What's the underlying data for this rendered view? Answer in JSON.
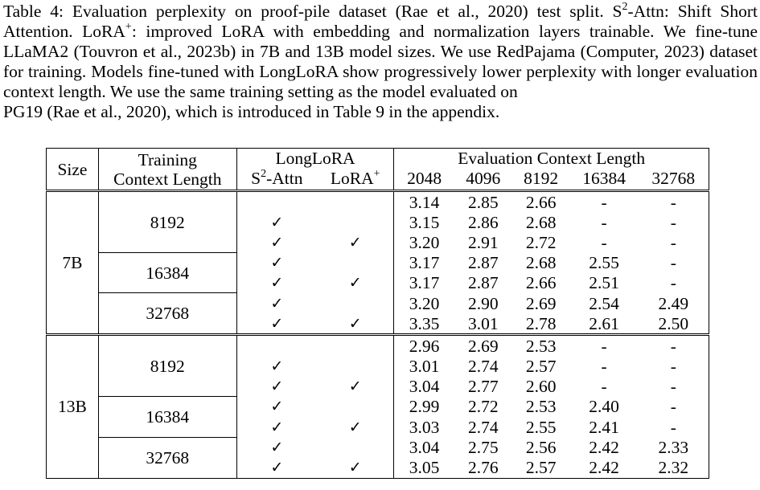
{
  "caption": {
    "line1": "Table 4: Evaluation perplexity on proof-pile dataset (Rae et al., 2020) test split. S",
    "sup1": "2",
    "line1b": "-Attn: Shift Short Attention. LoRA",
    "sup2": "+",
    "line2": ": improved LoRA with embedding and normalization layers trainable. We fine-tune LLaMA2 (Touvron et al., 2023b) in 7B and 13B model sizes. We use RedPajama (Computer, 2023) dataset for training. Models fine-tuned with LongLoRA show progressively lower perplexity with longer evaluation context length. We use the same training setting as the model evaluated on",
    "line3": "PG19 (Rae et al., 2020), which is introduced in Table 9 in the appendix."
  },
  "table": {
    "head": {
      "size": "Size",
      "training_line1": "Training",
      "training_line2": "Context Length",
      "longlora": "LongLoRA",
      "s2attn_pre": "S",
      "s2attn_sup": "2",
      "s2attn_post": "-Attn",
      "lora_pre": "LoRA",
      "lora_sup": "+",
      "eval": "Evaluation Context Length",
      "eval_cols": [
        "2048",
        "4096",
        "8192",
        "16384",
        "32768"
      ]
    },
    "check": "✓",
    "groups": [
      {
        "size": "7B",
        "blocks": [
          {
            "ctx": "8192",
            "rows": [
              {
                "s2": "",
                "lora": "",
                "vals": [
                  "3.14",
                  "2.85",
                  "2.66",
                  "-",
                  "-"
                ]
              },
              {
                "s2": "✓",
                "lora": "",
                "vals": [
                  "3.15",
                  "2.86",
                  "2.68",
                  "-",
                  "-"
                ]
              },
              {
                "s2": "✓",
                "lora": "✓",
                "vals": [
                  "3.20",
                  "2.91",
                  "2.72",
                  "-",
                  "-"
                ]
              }
            ]
          },
          {
            "ctx": "16384",
            "rows": [
              {
                "s2": "✓",
                "lora": "",
                "vals": [
                  "3.17",
                  "2.87",
                  "2.68",
                  "2.55",
                  "-"
                ]
              },
              {
                "s2": "✓",
                "lora": "✓",
                "vals": [
                  "3.17",
                  "2.87",
                  "2.66",
                  "2.51",
                  "-"
                ]
              }
            ]
          },
          {
            "ctx": "32768",
            "rows": [
              {
                "s2": "✓",
                "lora": "",
                "vals": [
                  "3.20",
                  "2.90",
                  "2.69",
                  "2.54",
                  "2.49"
                ]
              },
              {
                "s2": "✓",
                "lora": "✓",
                "vals": [
                  "3.35",
                  "3.01",
                  "2.78",
                  "2.61",
                  "2.50"
                ]
              }
            ]
          }
        ]
      },
      {
        "size": "13B",
        "blocks": [
          {
            "ctx": "8192",
            "rows": [
              {
                "s2": "",
                "lora": "",
                "vals": [
                  "2.96",
                  "2.69",
                  "2.53",
                  "-",
                  "-"
                ]
              },
              {
                "s2": "✓",
                "lora": "",
                "vals": [
                  "3.01",
                  "2.74",
                  "2.57",
                  "-",
                  "-"
                ]
              },
              {
                "s2": "✓",
                "lora": "✓",
                "vals": [
                  "3.04",
                  "2.77",
                  "2.60",
                  "-",
                  "-"
                ]
              }
            ]
          },
          {
            "ctx": "16384",
            "rows": [
              {
                "s2": "✓",
                "lora": "",
                "vals": [
                  "2.99",
                  "2.72",
                  "2.53",
                  "2.40",
                  "-"
                ]
              },
              {
                "s2": "✓",
                "lora": "✓",
                "vals": [
                  "3.03",
                  "2.74",
                  "2.55",
                  "2.41",
                  "-"
                ]
              }
            ]
          },
          {
            "ctx": "32768",
            "rows": [
              {
                "s2": "✓",
                "lora": "",
                "vals": [
                  "3.04",
                  "2.75",
                  "2.56",
                  "2.42",
                  "2.33"
                ]
              },
              {
                "s2": "✓",
                "lora": "✓",
                "vals": [
                  "3.05",
                  "2.76",
                  "2.57",
                  "2.42",
                  "2.32"
                ]
              }
            ]
          }
        ]
      }
    ]
  }
}
